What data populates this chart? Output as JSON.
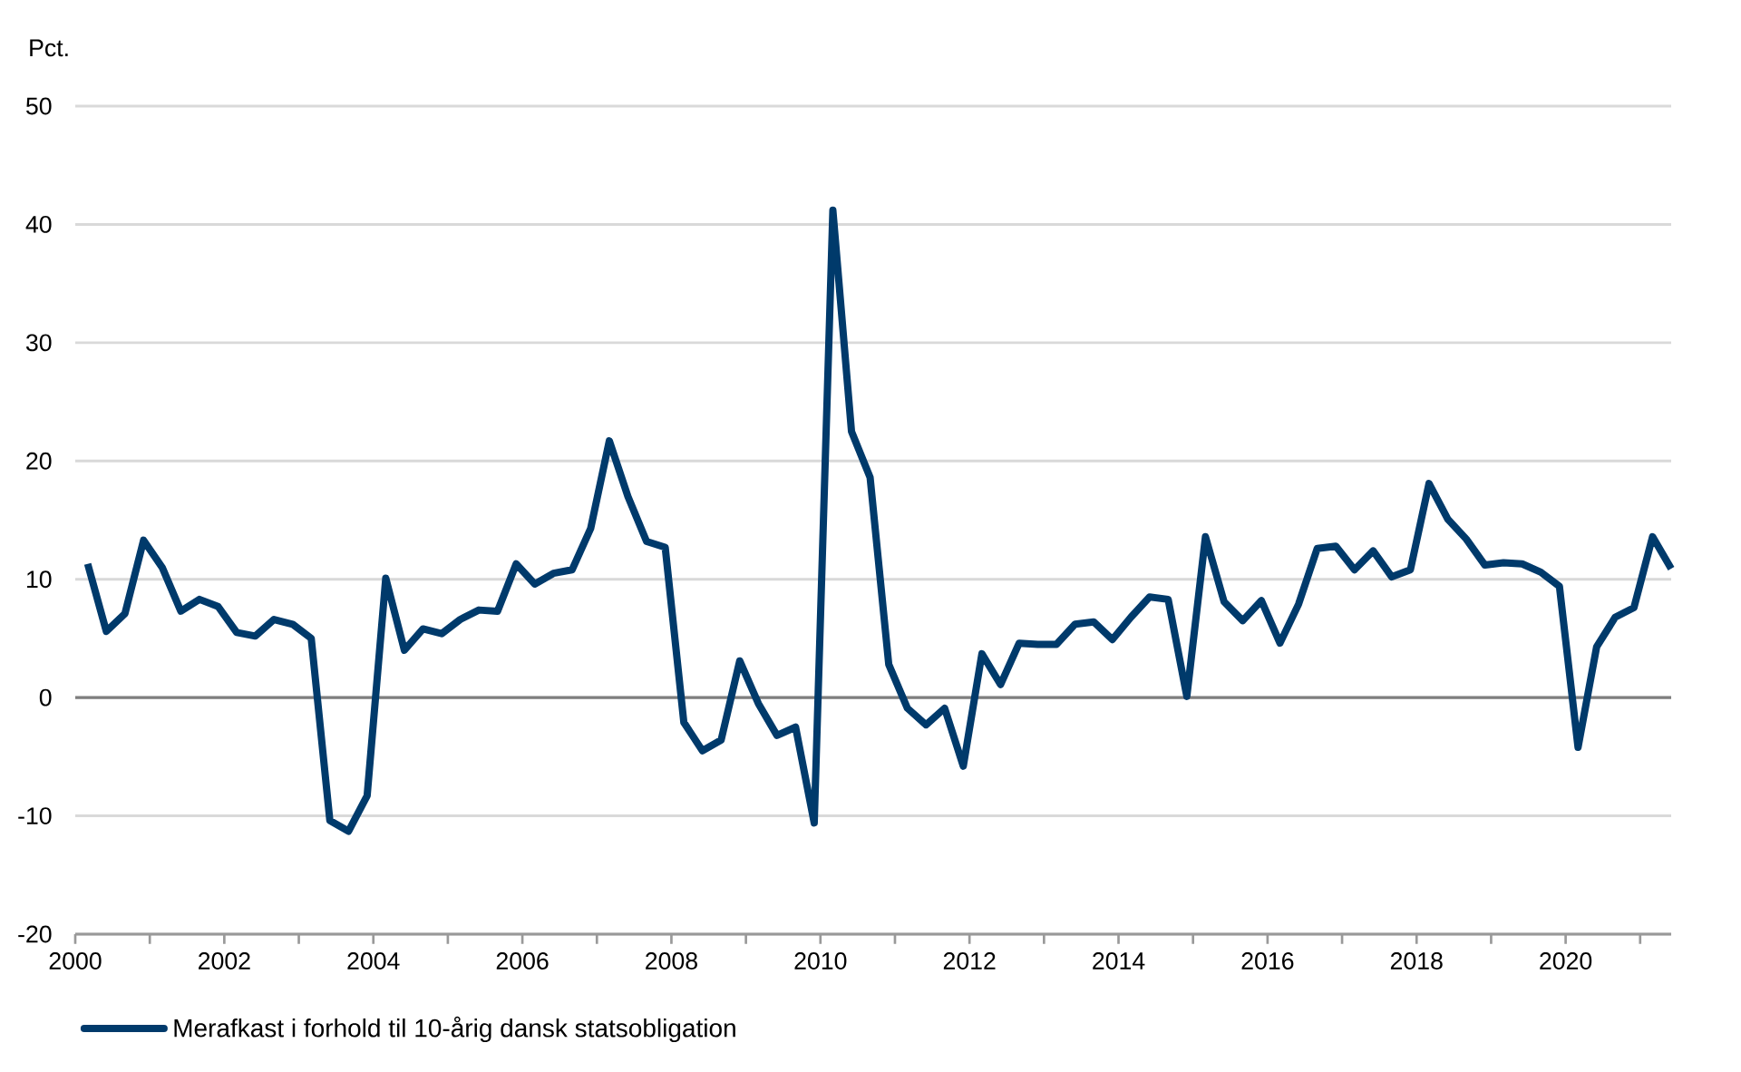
{
  "chart_data": {
    "type": "line",
    "ylabel": "Pct.",
    "x": [
      "2000-03",
      "2000-06",
      "2000-09",
      "2000-12",
      "2001-03",
      "2001-06",
      "2001-09",
      "2001-12",
      "2002-03",
      "2002-06",
      "2002-09",
      "2002-12",
      "2003-03",
      "2003-06",
      "2003-09",
      "2003-12",
      "2004-03",
      "2004-06",
      "2004-09",
      "2004-12",
      "2005-03",
      "2005-06",
      "2005-09",
      "2005-12",
      "2006-03",
      "2006-06",
      "2006-09",
      "2006-12",
      "2007-03",
      "2007-06",
      "2007-09",
      "2007-12",
      "2008-03",
      "2008-06",
      "2008-09",
      "2008-12",
      "2009-03",
      "2009-06",
      "2009-09",
      "2009-12",
      "2010-03",
      "2010-06",
      "2010-09",
      "2010-12",
      "2011-03",
      "2011-06",
      "2011-09",
      "2011-12",
      "2012-03",
      "2012-06",
      "2012-09",
      "2012-12",
      "2013-03",
      "2013-06",
      "2013-09",
      "2013-12",
      "2014-03",
      "2014-06",
      "2014-09",
      "2014-12",
      "2015-03",
      "2015-06",
      "2015-09",
      "2015-12",
      "2016-03",
      "2016-06",
      "2016-09",
      "2016-12",
      "2017-03",
      "2017-06",
      "2017-09",
      "2017-12",
      "2018-03",
      "2018-06",
      "2018-09",
      "2018-12",
      "2019-03",
      "2019-06",
      "2019-09",
      "2019-12",
      "2020-03",
      "2020-06",
      "2020-09",
      "2020-12",
      "2021-03",
      "2021-06"
    ],
    "series": [
      {
        "name": "Merafkast i forhold til 10-årig dansk statsobligation",
        "color": "#003a6b",
        "values": [
          11.3,
          5.6,
          7.1,
          13.3,
          11.0,
          7.3,
          8.3,
          7.7,
          5.5,
          5.2,
          6.6,
          6.2,
          5.0,
          -10.4,
          -11.3,
          -8.3,
          10.1,
          4.0,
          5.8,
          5.4,
          6.6,
          7.4,
          7.3,
          11.3,
          9.6,
          10.5,
          10.8,
          14.3,
          21.7,
          17.0,
          13.2,
          12.7,
          -2.1,
          -4.5,
          -3.6,
          3.1,
          -0.5,
          -3.2,
          -2.5,
          -10.6,
          41.2,
          22.5,
          18.6,
          2.8,
          -0.9,
          -2.3,
          -0.9,
          -5.8,
          3.7,
          1.1,
          4.6,
          4.5,
          4.5,
          6.2,
          6.4,
          4.9,
          6.8,
          8.5,
          8.3,
          0.1,
          13.6,
          8.1,
          6.5,
          8.2,
          4.6,
          7.9,
          12.6,
          12.8,
          10.8,
          12.4,
          10.2,
          10.8,
          18.1,
          15.1,
          13.4,
          11.2,
          11.4,
          11.3,
          10.6,
          9.4,
          -4.2,
          4.3,
          6.8,
          7.6,
          13.6,
          10.9
        ]
      }
    ],
    "xlim": [
      "2000-01",
      "2021-06"
    ],
    "xticks": [
      {
        "value": "2000",
        "label": "2000"
      },
      {
        "value": "2001",
        "label": null
      },
      {
        "value": "2002",
        "label": "2002"
      },
      {
        "value": "2003",
        "label": null
      },
      {
        "value": "2004",
        "label": "2004"
      },
      {
        "value": "2005",
        "label": null
      },
      {
        "value": "2006",
        "label": "2006"
      },
      {
        "value": "2007",
        "label": null
      },
      {
        "value": "2008",
        "label": "2008"
      },
      {
        "value": "2009",
        "label": null
      },
      {
        "value": "2010",
        "label": "2010"
      },
      {
        "value": "2011",
        "label": null
      },
      {
        "value": "2012",
        "label": "2012"
      },
      {
        "value": "2013",
        "label": null
      },
      {
        "value": "2014",
        "label": "2014"
      },
      {
        "value": "2015",
        "label": null
      },
      {
        "value": "2016",
        "label": "2016"
      },
      {
        "value": "2017",
        "label": null
      },
      {
        "value": "2018",
        "label": "2018"
      },
      {
        "value": "2019",
        "label": null
      },
      {
        "value": "2020",
        "label": "2020"
      },
      {
        "value": "2021",
        "label": null
      }
    ],
    "ylim": [
      -20,
      50
    ],
    "yticks": [
      -20,
      -10,
      0,
      10,
      20,
      30,
      40,
      50
    ],
    "ref_lines": [
      {
        "axis": "y",
        "value": 0,
        "color": "#7f7f7f"
      }
    ],
    "grid": "y",
    "legend": "bottom",
    "marker": "none",
    "line_style": "solid"
  }
}
